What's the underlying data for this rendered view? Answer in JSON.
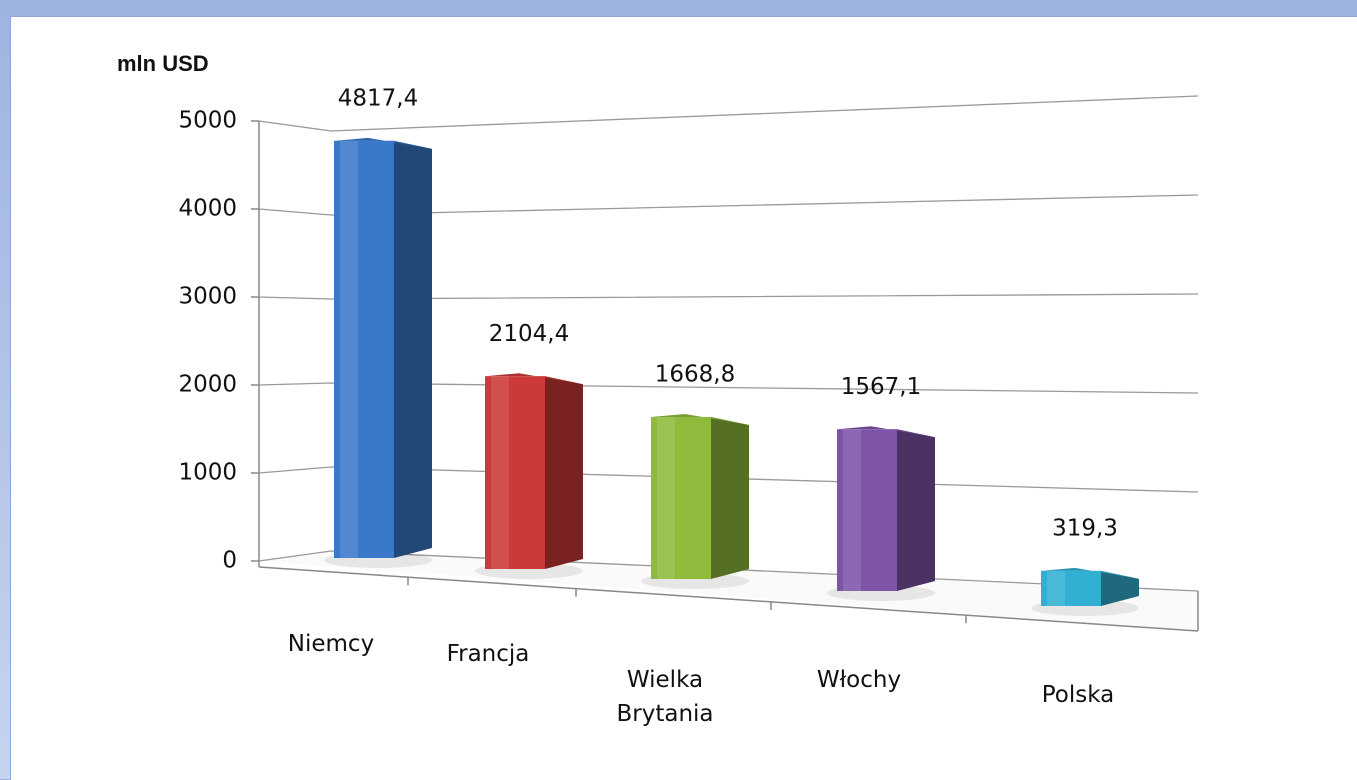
{
  "chart_data": {
    "type": "bar3d",
    "y_axis_label": "mln USD",
    "categories": [
      "Niemcy",
      "Francja",
      "Wielka Brytania",
      "Włochy",
      "Polska"
    ],
    "values": [
      4817.4,
      2104.4,
      1668.8,
      1567.1,
      319.3
    ],
    "value_labels": [
      "4817,4",
      "2104,4",
      "1668,8",
      "1567,1",
      "319,3"
    ],
    "colors": [
      "#3a78c9",
      "#cc3a37",
      "#8fba3c",
      "#7e54a8",
      "#32b0d3"
    ],
    "ylim": [
      0,
      5000
    ],
    "yticks": [
      0,
      1000,
      2000,
      3000,
      4000,
      5000
    ],
    "grid": true
  }
}
